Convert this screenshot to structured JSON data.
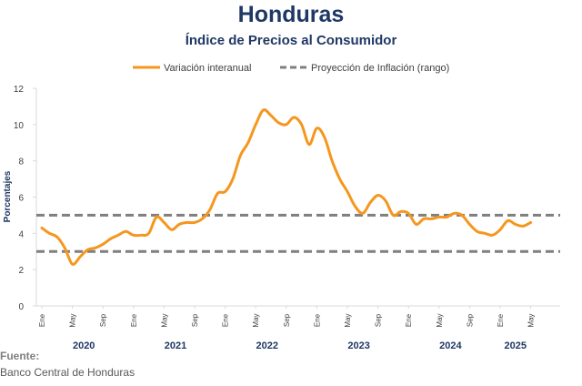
{
  "header": {
    "title": "Honduras",
    "subtitle": "Índice de Precios al Consumidor"
  },
  "footer": {
    "source_label": "Fuente:",
    "source_text": "Banco Central de Honduras"
  },
  "colors": {
    "series": "#f5961e",
    "projection": "#7f7f7f",
    "axis": "#d9d9d9",
    "text": "#1f3864"
  },
  "chart_data": {
    "type": "line",
    "title": "Honduras",
    "subtitle": "Índice de Precios al Consumidor",
    "ylabel": "Porcentajes",
    "xlabel": "",
    "ylim": [
      0,
      12
    ],
    "yticks": [
      0,
      2,
      4,
      6,
      8,
      10,
      12
    ],
    "grid": false,
    "legend": "top",
    "x_tick_labels": [
      "Ene",
      "May",
      "Sep",
      "Ene",
      "May",
      "Sep",
      "Ene",
      "May",
      "Sep",
      "Ene",
      "May",
      "Sep",
      "Ene",
      "May",
      "Sep",
      "Ene",
      "May"
    ],
    "years": [
      "2020",
      "2021",
      "2022",
      "2023",
      "2024",
      "2025"
    ],
    "series": [
      {
        "name": "Variación interanual",
        "x": [
          "2020-01",
          "2020-02",
          "2020-03",
          "2020-04",
          "2020-05",
          "2020-06",
          "2020-07",
          "2020-08",
          "2020-09",
          "2020-10",
          "2020-11",
          "2020-12",
          "2021-01",
          "2021-02",
          "2021-03",
          "2021-04",
          "2021-05",
          "2021-06",
          "2021-07",
          "2021-08",
          "2021-09",
          "2021-10",
          "2021-11",
          "2021-12",
          "2022-01",
          "2022-02",
          "2022-03",
          "2022-04",
          "2022-05",
          "2022-06",
          "2022-07",
          "2022-08",
          "2022-09",
          "2022-10",
          "2022-11",
          "2022-12",
          "2023-01",
          "2023-02",
          "2023-03",
          "2023-04",
          "2023-05",
          "2023-06",
          "2023-07",
          "2023-08",
          "2023-09",
          "2023-10",
          "2023-11",
          "2023-12",
          "2024-01",
          "2024-02",
          "2024-03",
          "2024-04",
          "2024-05",
          "2024-06",
          "2024-07",
          "2024-08",
          "2024-09",
          "2024-10",
          "2024-11",
          "2024-12",
          "2025-01",
          "2025-02",
          "2025-03",
          "2025-04",
          "2025-05"
        ],
        "values": [
          4.3,
          4.0,
          3.8,
          3.2,
          2.3,
          2.7,
          3.1,
          3.2,
          3.4,
          3.7,
          3.9,
          4.1,
          3.9,
          3.9,
          4.0,
          4.9,
          4.6,
          4.2,
          4.5,
          4.6,
          4.6,
          4.8,
          5.3,
          6.2,
          6.3,
          7.0,
          8.3,
          9.0,
          10.0,
          10.8,
          10.5,
          10.1,
          10.0,
          10.4,
          10.0,
          8.9,
          9.8,
          9.3,
          8.0,
          7.0,
          6.3,
          5.5,
          5.1,
          5.7,
          6.1,
          5.8,
          5.0,
          5.2,
          5.1,
          4.5,
          4.8,
          4.8,
          4.9,
          4.9,
          5.1,
          5.0,
          4.5,
          4.1,
          4.0,
          3.9,
          4.2,
          4.7,
          4.5,
          4.4,
          4.6
        ]
      },
      {
        "name": "Proyección de Inflación (rango)",
        "values": [
          3,
          5
        ]
      }
    ]
  }
}
